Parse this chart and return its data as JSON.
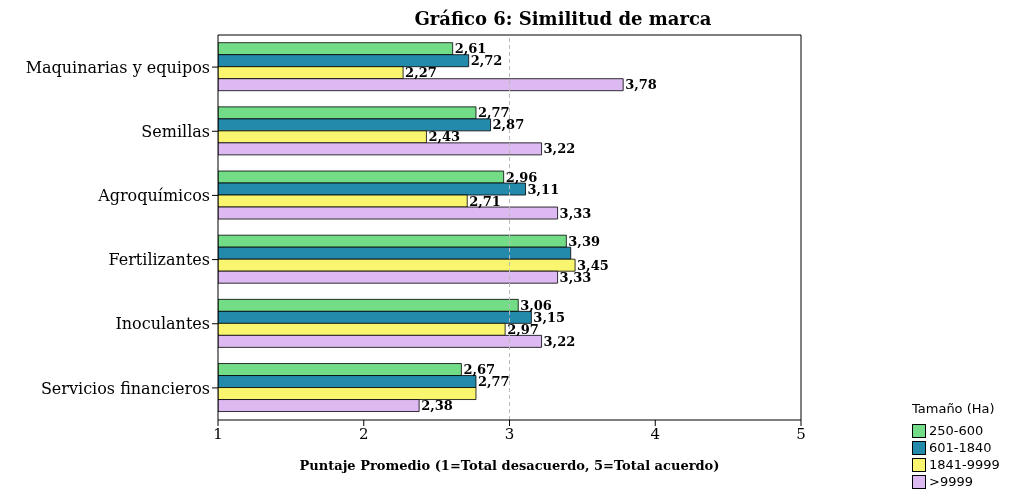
{
  "chart_data": {
    "type": "bar",
    "orientation": "horizontal",
    "title": "Gráfico 6: Similitud de marca",
    "xlabel": "Puntaje Promedio (1=Total desacuerdo, 5=Total acuerdo)",
    "legend_title": "Tamaño (Ha)",
    "categories": [
      "Maquinarias y equipos",
      "Semillas",
      "Agroquímicos",
      "Fertilizantes",
      "Inoculantes",
      "Servicios financieros"
    ],
    "series": [
      {
        "name": "250-600",
        "color": "#72dd86",
        "values": [
          2.61,
          2.77,
          2.96,
          3.39,
          3.06,
          2.67
        ],
        "value_labels": [
          "2,61",
          "2,77",
          "2,96",
          "3,39",
          "3,06",
          "2,67"
        ]
      },
      {
        "name": "601-1840",
        "color": "#238aab",
        "values": [
          2.72,
          2.87,
          3.11,
          3.42,
          3.15,
          2.77
        ],
        "value_labels": [
          "2,72",
          "2,87",
          "3,11",
          null,
          "3,15",
          "2,77"
        ]
      },
      {
        "name": "1841-9999",
        "color": "#f9f56f",
        "values": [
          2.27,
          2.43,
          2.71,
          3.45,
          2.97,
          2.77
        ],
        "value_labels": [
          "2,27",
          "2,43",
          "2,71",
          "3,45",
          "2,97",
          null
        ]
      },
      {
        "name": ">9999",
        "color": "#dcb9f0",
        "values": [
          3.78,
          3.22,
          3.33,
          3.33,
          3.22,
          2.38
        ],
        "value_labels": [
          "3,78",
          "3,22",
          "3,33",
          "3,33",
          "3,22",
          "2,38"
        ]
      }
    ],
    "xlim": [
      1,
      5
    ],
    "xticks": [
      1,
      2,
      3,
      4,
      5
    ],
    "ref_lines": [
      {
        "axis": "x",
        "value": 3,
        "color": "#bbbbbb",
        "line_style": "dashed"
      }
    ],
    "grid": false,
    "legend": "bottom right"
  }
}
